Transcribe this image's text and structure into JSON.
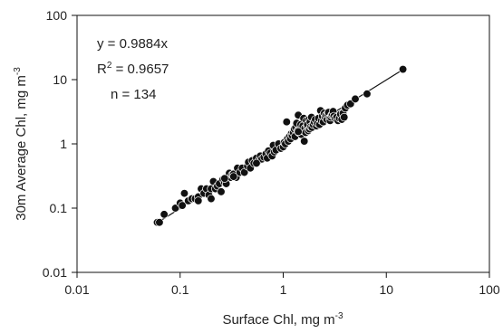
{
  "chart_data": {
    "type": "scatter",
    "x_scale": "log",
    "y_scale": "log",
    "xlim": [
      0.01,
      100
    ],
    "ylim": [
      0.01,
      100
    ],
    "grid": false,
    "xlabel": "Surface Chl, mg m",
    "xlabel_sup": "-3",
    "ylabel": "30m Average Chl, mg m",
    "ylabel_sup": "-3",
    "x_ticks": [
      {
        "value": 0.01,
        "label": "0.01"
      },
      {
        "value": 0.1,
        "label": "0.1"
      },
      {
        "value": 1,
        "label": "1"
      },
      {
        "value": 10,
        "label": "10"
      },
      {
        "value": 100,
        "label": "100"
      }
    ],
    "y_ticks": [
      {
        "value": 0.01,
        "label": "0.01"
      },
      {
        "value": 0.1,
        "label": "0.1"
      },
      {
        "value": 1,
        "label": "1"
      },
      {
        "value": 10,
        "label": "10"
      },
      {
        "value": 100,
        "label": "100"
      }
    ],
    "annotations": {
      "equation": "y = 0.9884x",
      "r2_prefix": "R",
      "r2_sup": "2",
      "r2_value": " = 0.9657",
      "n": "n = 134"
    },
    "fit_line": {
      "slope": 0.9884,
      "x_range": [
        0.06,
        14.5
      ]
    },
    "points": [
      [
        0.06,
        0.06
      ],
      [
        0.063,
        0.06
      ],
      [
        0.07,
        0.08
      ],
      [
        0.09,
        0.1
      ],
      [
        0.1,
        0.12
      ],
      [
        0.105,
        0.11
      ],
      [
        0.11,
        0.17
      ],
      [
        0.12,
        0.13
      ],
      [
        0.13,
        0.14
      ],
      [
        0.14,
        0.14
      ],
      [
        0.15,
        0.15
      ],
      [
        0.16,
        0.2
      ],
      [
        0.17,
        0.17
      ],
      [
        0.18,
        0.2
      ],
      [
        0.19,
        0.16
      ],
      [
        0.2,
        0.14
      ],
      [
        0.2,
        0.2
      ],
      [
        0.21,
        0.26
      ],
      [
        0.22,
        0.2
      ],
      [
        0.23,
        0.22
      ],
      [
        0.24,
        0.24
      ],
      [
        0.25,
        0.18
      ],
      [
        0.26,
        0.28
      ],
      [
        0.27,
        0.25
      ],
      [
        0.28,
        0.24
      ],
      [
        0.3,
        0.35
      ],
      [
        0.31,
        0.3
      ],
      [
        0.32,
        0.33
      ],
      [
        0.33,
        0.34
      ],
      [
        0.35,
        0.3
      ],
      [
        0.36,
        0.42
      ],
      [
        0.38,
        0.36
      ],
      [
        0.4,
        0.42
      ],
      [
        0.42,
        0.36
      ],
      [
        0.45,
        0.45
      ],
      [
        0.46,
        0.52
      ],
      [
        0.48,
        0.42
      ],
      [
        0.5,
        0.55
      ],
      [
        0.52,
        0.5
      ],
      [
        0.55,
        0.6
      ],
      [
        0.58,
        0.55
      ],
      [
        0.6,
        0.65
      ],
      [
        0.62,
        0.58
      ],
      [
        0.65,
        0.62
      ],
      [
        0.68,
        0.7
      ],
      [
        0.7,
        0.6
      ],
      [
        0.72,
        0.78
      ],
      [
        0.75,
        0.72
      ],
      [
        0.78,
        0.65
      ],
      [
        0.8,
        0.95
      ],
      [
        0.82,
        0.75
      ],
      [
        0.85,
        0.8
      ],
      [
        0.9,
        1.0
      ],
      [
        0.95,
        0.85
      ],
      [
        1.0,
        0.9
      ],
      [
        1.02,
        1.05
      ],
      [
        1.05,
        1.0
      ],
      [
        1.08,
        2.2
      ],
      [
        1.1,
        1.2
      ],
      [
        1.12,
        1.1
      ],
      [
        1.15,
        1.3
      ],
      [
        1.18,
        1.2
      ],
      [
        1.2,
        1.45
      ],
      [
        1.22,
        1.35
      ],
      [
        1.25,
        1.5
      ],
      [
        1.28,
        1.7
      ],
      [
        1.3,
        1.3
      ],
      [
        1.32,
        1.8
      ],
      [
        1.35,
        2.1
      ],
      [
        1.38,
        1.6
      ],
      [
        1.4,
        2.8
      ],
      [
        1.42,
        1.5
      ],
      [
        1.45,
        1.7
      ],
      [
        1.48,
        2.0
      ],
      [
        1.5,
        1.4
      ],
      [
        1.52,
        1.6
      ],
      [
        1.55,
        1.9
      ],
      [
        1.58,
        2.5
      ],
      [
        1.6,
        1.1
      ],
      [
        1.62,
        1.75
      ],
      [
        1.65,
        1.5
      ],
      [
        1.68,
        2.3
      ],
      [
        1.7,
        1.9
      ],
      [
        1.72,
        2.0
      ],
      [
        1.75,
        1.6
      ],
      [
        1.78,
        2.4
      ],
      [
        1.8,
        1.7
      ],
      [
        1.82,
        2.2
      ],
      [
        1.85,
        1.85
      ],
      [
        1.88,
        2.6
      ],
      [
        1.9,
        1.8
      ],
      [
        1.95,
        2.0
      ],
      [
        2.0,
        2.2
      ],
      [
        2.05,
        2.4
      ],
      [
        2.1,
        1.9
      ],
      [
        2.15,
        2.1
      ],
      [
        2.2,
        2.5
      ],
      [
        2.25,
        2.0
      ],
      [
        2.3,
        3.3
      ],
      [
        2.35,
        2.3
      ],
      [
        2.4,
        2.7
      ],
      [
        2.45,
        2.2
      ],
      [
        2.5,
        3.0
      ],
      [
        2.55,
        2.6
      ],
      [
        2.6,
        2.8
      ],
      [
        2.65,
        2.4
      ],
      [
        2.7,
        2.9
      ],
      [
        2.75,
        3.1
      ],
      [
        2.8,
        2.5
      ],
      [
        2.85,
        2.3
      ],
      [
        2.9,
        2.6
      ],
      [
        2.95,
        2.8
      ],
      [
        3.0,
        2.9
      ],
      [
        3.05,
        3.2
      ],
      [
        3.1,
        2.7
      ],
      [
        3.2,
        2.5
      ],
      [
        3.3,
        2.6
      ],
      [
        3.4,
        2.3
      ],
      [
        3.5,
        2.5
      ],
      [
        3.6,
        2.9
      ],
      [
        3.7,
        2.4
      ],
      [
        3.8,
        3.0
      ],
      [
        3.9,
        2.6
      ],
      [
        4.0,
        3.6
      ],
      [
        4.2,
        4.0
      ],
      [
        4.5,
        4.2
      ],
      [
        5.0,
        5.0
      ],
      [
        6.5,
        6.0
      ],
      [
        1.4,
        1.55
      ],
      [
        0.55,
        0.5
      ],
      [
        0.33,
        0.31
      ],
      [
        0.15,
        0.13
      ],
      [
        0.27,
        0.29
      ],
      [
        14.5,
        14.5
      ]
    ]
  }
}
